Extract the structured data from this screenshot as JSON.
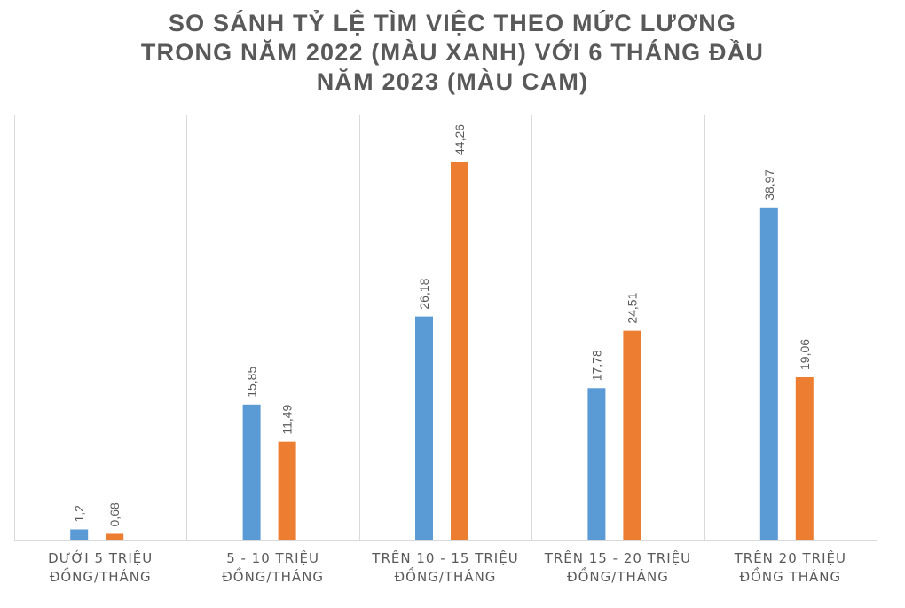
{
  "chart_data": {
    "type": "bar",
    "title_lines": [
      "SO SÁNH TỶ LỆ TÌM VIỆC THEO MỨC LƯƠNG",
      "TRONG NĂM 2022 (MÀU XANH) VỚI 6 THÁNG ĐẦU",
      "NĂM 2023 (MÀU CAM)"
    ],
    "categories": [
      [
        "DƯỚI 5 TRIỆU",
        "ĐỒNG/THÁNG"
      ],
      [
        "5 - 10 TRIỆU",
        "ĐỒNG/THÁNG"
      ],
      [
        "TRÊN 10 - 15 TRIỆU",
        "ĐỒNG/THÁNG"
      ],
      [
        "TRÊN 15 - 20 TRIỆU",
        "ĐỒNG/THÁNG"
      ],
      [
        "TRÊN 20 TRIỆU",
        "ĐỒNG THÁNG"
      ]
    ],
    "series": [
      {
        "color": "#5B9BD5",
        "values": [
          1.2,
          15.85,
          26.18,
          17.78,
          38.97
        ],
        "labels": [
          "1,2",
          "15,85",
          "26,18",
          "17,78",
          "38,97"
        ]
      },
      {
        "color": "#ED7D31",
        "values": [
          0.68,
          11.49,
          44.26,
          24.51,
          19.06
        ],
        "labels": [
          "0,68",
          "11,49",
          "44,26",
          "24,51",
          "19,06"
        ]
      }
    ],
    "ylim": [
      0,
      50
    ],
    "grid": "vertical category separators",
    "legend": "none"
  }
}
